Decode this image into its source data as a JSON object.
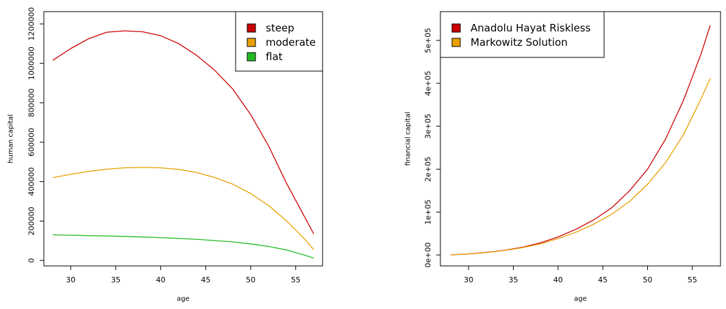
{
  "chart_data": [
    {
      "type": "line",
      "xlabel": "age",
      "ylabel": "human capital",
      "xlim": [
        28,
        57
      ],
      "ylim": [
        0,
        1200000
      ],
      "xticks": [
        30,
        35,
        40,
        45,
        50,
        55
      ],
      "yticks": [
        0,
        200000,
        400000,
        600000,
        800000,
        1000000,
        1200000
      ],
      "xtick_labels": [
        "30",
        "35",
        "40",
        "45",
        "50",
        "55"
      ],
      "ytick_labels": [
        "0",
        "200000",
        "400000",
        "600000",
        "800000",
        "1000000",
        "1200000"
      ],
      "legend_position": "top-right",
      "grid": false,
      "x": [
        28,
        30,
        32,
        34,
        36,
        38,
        40,
        42,
        44,
        46,
        48,
        50,
        52,
        54,
        56,
        57
      ],
      "series": [
        {
          "name": "steep",
          "color": "#CC0000",
          "values": [
            1015000,
            1075000,
            1125000,
            1158000,
            1165000,
            1160000,
            1140000,
            1100000,
            1040000,
            965000,
            870000,
            740000,
            580000,
            390000,
            220000,
            135000
          ]
        },
        {
          "name": "moderate",
          "color": "#E8A000",
          "values": [
            420000,
            437000,
            452000,
            463000,
            470000,
            472000,
            470000,
            462000,
            446000,
            421000,
            387000,
            340000,
            278000,
            200000,
            108000,
            55000
          ]
        },
        {
          "name": "flat",
          "color": "#22BB22",
          "values": [
            130000,
            128000,
            126000,
            124000,
            122000,
            119000,
            116000,
            112000,
            107000,
            101000,
            94000,
            84000,
            71000,
            53000,
            27000,
            12000
          ]
        }
      ]
    },
    {
      "type": "line",
      "xlabel": "age",
      "ylabel": "financial capital",
      "xlim": [
        28,
        57
      ],
      "ylim": [
        0,
        540000
      ],
      "xticks": [
        30,
        35,
        40,
        45,
        50,
        55
      ],
      "yticks": [
        0,
        100000,
        200000,
        300000,
        400000,
        500000
      ],
      "xtick_labels": [
        "30",
        "35",
        "40",
        "45",
        "50",
        "55"
      ],
      "ytick_labels": [
        "0e+00",
        "1e+05",
        "2e+05",
        "3e+05",
        "4e+05",
        "5e+05"
      ],
      "legend_position": "top-left",
      "grid": false,
      "x": [
        28,
        30,
        32,
        34,
        36,
        38,
        40,
        42,
        44,
        46,
        48,
        50,
        52,
        54,
        56,
        57
      ],
      "series": [
        {
          "name": "Anadolu Hayat Riskless",
          "color": "#CC0000",
          "values": [
            0,
            2500,
            6000,
            11000,
            18000,
            28000,
            42000,
            60000,
            82000,
            110000,
            150000,
            200000,
            270000,
            360000,
            470000,
            535000
          ]
        },
        {
          "name": "Markowitz Solution",
          "color": "#E8A000",
          "values": [
            0,
            2400,
            5800,
            10500,
            17000,
            26000,
            38000,
            53000,
            72000,
            95000,
            125000,
            165000,
            215000,
            280000,
            365000,
            412000
          ]
        }
      ]
    }
  ]
}
